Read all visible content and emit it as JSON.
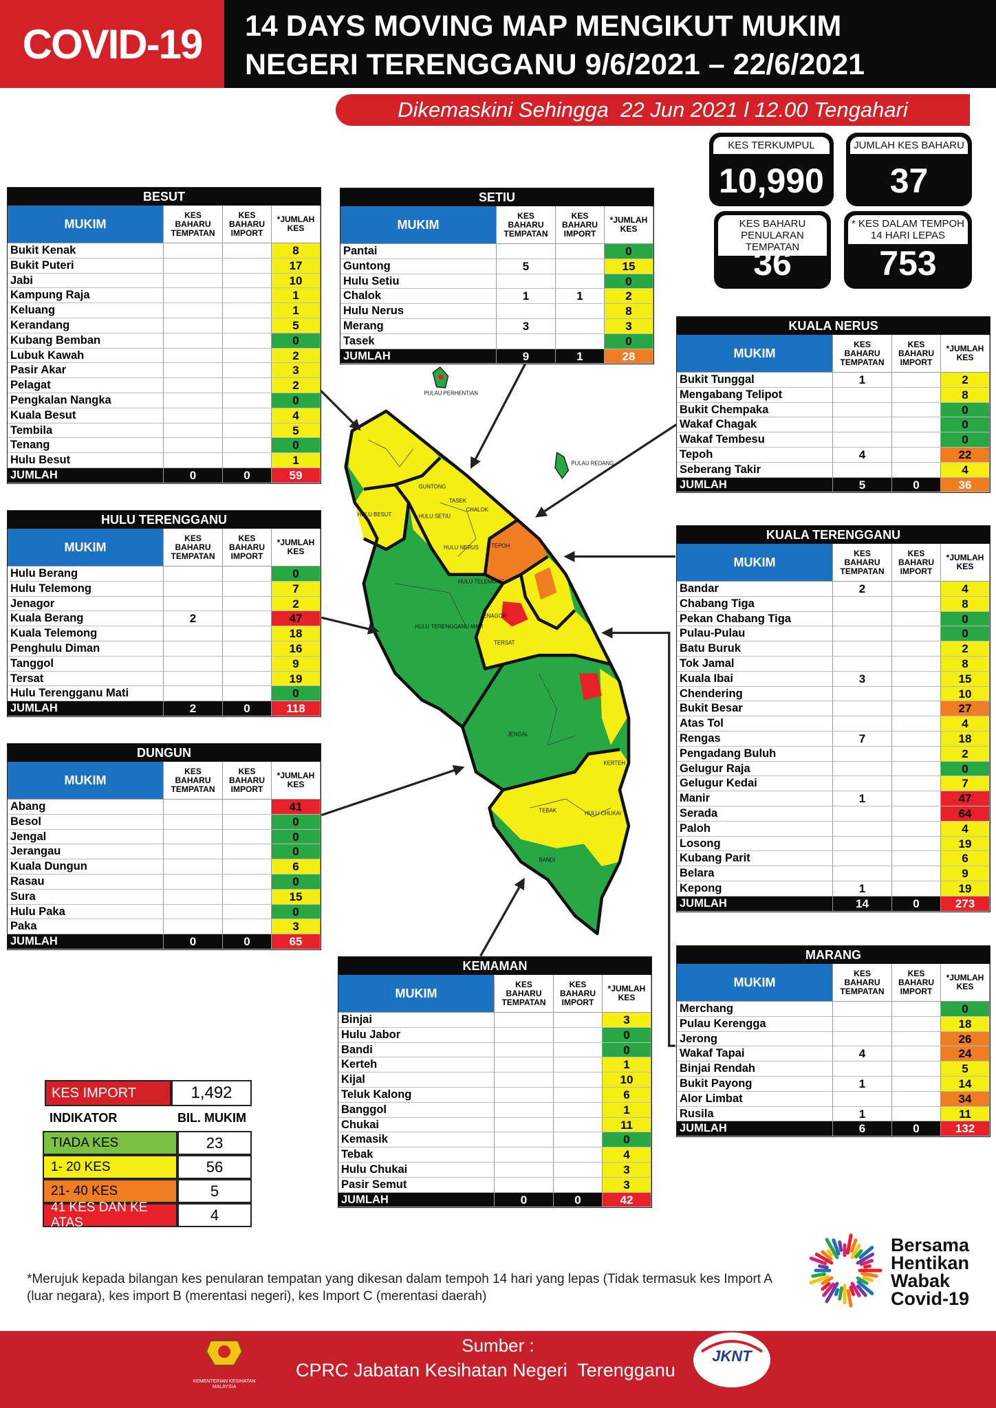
{
  "header": {
    "badge": "COVID-19",
    "title_lines": [
      "14 DAYS MOVING MAP MENGIKUT MUKIM",
      "NEGERI TERENGGANU 9/6/2021 – 22/6/2021"
    ],
    "updated": "Dikemaskini Sehingga  22 Jun 2021 l 12.00 Tengahari"
  },
  "stats": [
    {
      "label": "KES TERKUMPUL",
      "value": "10,990"
    },
    {
      "label": "JUMLAH KES BAHARU",
      "value": 37
    },
    {
      "label": "KES BAHARU PENULARAN TEMPATAN",
      "value": 36
    },
    {
      "label": "* KES DALAM TEMPOH 14 HARI LEPAS",
      "value": 753
    }
  ],
  "columns": [
    "MUKIM",
    "KES BAHARU TEMPATAN",
    "KES BAHARU IMPORT",
    "*JUMLAH KES"
  ],
  "tables": [
    {
      "title": "BESUT",
      "rows": [
        [
          "Bukit Kenak",
          null,
          null,
          8,
          "#f5ee12"
        ],
        [
          "Bukit Puteri",
          null,
          null,
          17,
          "#f5ee12"
        ],
        [
          "Jabi",
          null,
          null,
          10,
          "#f5ee12"
        ],
        [
          "Kampung Raja",
          null,
          null,
          1,
          "#f5ee12"
        ],
        [
          "Keluang",
          null,
          null,
          1,
          "#f5ee12"
        ],
        [
          "Kerandang",
          null,
          null,
          5,
          "#f5ee12"
        ],
        [
          "Kubang Bemban",
          null,
          null,
          0,
          "#27a844"
        ],
        [
          "Lubuk Kawah",
          null,
          null,
          2,
          "#f5ee12"
        ],
        [
          "Pasir Akar",
          null,
          null,
          3,
          "#f5ee12"
        ],
        [
          "Pelagat",
          null,
          null,
          2,
          "#f5ee12"
        ],
        [
          "Pengkalan Nangka",
          null,
          null,
          0,
          "#27a844"
        ],
        [
          "Kuala Besut",
          null,
          null,
          4,
          "#f5ee12"
        ],
        [
          "Tembila",
          null,
          null,
          5,
          "#f5ee12"
        ],
        [
          "Tenang",
          null,
          null,
          0,
          "#27a844"
        ],
        [
          "Hulu Besut",
          null,
          null,
          1,
          "#f5ee12"
        ]
      ],
      "total": [
        "JUMLAH",
        0,
        0,
        59,
        "#e8202a"
      ]
    },
    {
      "title": "SETIU",
      "rows": [
        [
          "Pantai",
          null,
          null,
          0,
          "#27a844"
        ],
        [
          "Guntong",
          5,
          null,
          15,
          "#f5ee12"
        ],
        [
          "Hulu Setiu",
          null,
          null,
          0,
          "#27a844"
        ],
        [
          "Chalok",
          1,
          1,
          2,
          "#f5ee12"
        ],
        [
          "Hulu Nerus",
          null,
          null,
          8,
          "#f5ee12"
        ],
        [
          "Merang",
          3,
          null,
          3,
          "#f5ee12"
        ],
        [
          "Tasek",
          null,
          null,
          0,
          "#27a844"
        ]
      ],
      "total": [
        "JUMLAH",
        9,
        1,
        28,
        "#f07d22"
      ]
    },
    {
      "title": "KUALA NERUS",
      "rows": [
        [
          "Bukit Tunggal",
          1,
          null,
          2,
          "#f5ee12"
        ],
        [
          "Mengabang Telipot",
          null,
          null,
          8,
          "#f5ee12"
        ],
        [
          "Bukit Chempaka",
          null,
          null,
          0,
          "#27a844"
        ],
        [
          "Wakaf Chagak",
          null,
          null,
          0,
          "#27a844"
        ],
        [
          "Wakaf Tembesu",
          null,
          null,
          0,
          "#27a844"
        ],
        [
          "Tepoh",
          4,
          null,
          22,
          "#f07d22"
        ],
        [
          "Seberang Takir",
          null,
          null,
          4,
          "#f5ee12"
        ]
      ],
      "total": [
        "JUMLAH",
        5,
        0,
        36,
        "#f07d22"
      ]
    },
    {
      "title": "HULU TERENGGANU",
      "rows": [
        [
          "Hulu Berang",
          null,
          null,
          0,
          "#27a844"
        ],
        [
          "Hulu Telemong",
          null,
          null,
          7,
          "#f5ee12"
        ],
        [
          "Jenagor",
          null,
          null,
          2,
          "#f5ee12"
        ],
        [
          "Kuala Berang",
          2,
          null,
          47,
          "#e8202a"
        ],
        [
          "Kuala Telemong",
          null,
          null,
          18,
          "#f5ee12"
        ],
        [
          "Penghulu Diman",
          null,
          null,
          16,
          "#f5ee12"
        ],
        [
          "Tanggol",
          null,
          null,
          9,
          "#f5ee12"
        ],
        [
          "Tersat",
          null,
          null,
          19,
          "#f5ee12"
        ],
        [
          "Hulu Terengganu Mati",
          null,
          null,
          0,
          "#27a844"
        ]
      ],
      "total": [
        "JUMLAH",
        2,
        0,
        118,
        "#e8202a"
      ]
    },
    {
      "title": "KUALA TERENGGANU",
      "rows": [
        [
          "Bandar",
          2,
          null,
          4,
          "#f5ee12"
        ],
        [
          "Chabang Tiga",
          null,
          null,
          8,
          "#f5ee12"
        ],
        [
          "Pekan Chabang Tiga",
          null,
          null,
          0,
          "#27a844"
        ],
        [
          "Pulau-Pulau",
          null,
          null,
          0,
          "#27a844"
        ],
        [
          "Batu Buruk",
          null,
          null,
          2,
          "#f5ee12"
        ],
        [
          "Tok Jamal",
          null,
          null,
          8,
          "#f5ee12"
        ],
        [
          "Kuala Ibai",
          3,
          null,
          15,
          "#f5ee12"
        ],
        [
          "Chendering",
          null,
          null,
          10,
          "#f5ee12"
        ],
        [
          "Bukit Besar",
          null,
          null,
          27,
          "#f07d22"
        ],
        [
          "Atas Tol",
          null,
          null,
          4,
          "#f5ee12"
        ],
        [
          "Rengas",
          7,
          null,
          18,
          "#f5ee12"
        ],
        [
          "Pengadang Buluh",
          null,
          null,
          2,
          "#f5ee12"
        ],
        [
          "Gelugur Raja",
          null,
          null,
          0,
          "#27a844"
        ],
        [
          "Gelugur Kedai",
          null,
          null,
          7,
          "#f5ee12"
        ],
        [
          "Manir",
          1,
          null,
          47,
          "#e8202a"
        ],
        [
          "Serada",
          null,
          null,
          64,
          "#e8202a"
        ],
        [
          "Paloh",
          null,
          null,
          4,
          "#f5ee12"
        ],
        [
          "Losong",
          null,
          null,
          19,
          "#f5ee12"
        ],
        [
          "Kubang Parit",
          null,
          null,
          6,
          "#f5ee12"
        ],
        [
          "Belara",
          null,
          null,
          9,
          "#f5ee12"
        ],
        [
          "Kepong",
          1,
          null,
          19,
          "#f5ee12"
        ]
      ],
      "total": [
        "JUMLAH",
        14,
        0,
        273,
        "#e8202a"
      ]
    },
    {
      "title": "DUNGUN",
      "rows": [
        [
          "Abang",
          null,
          null,
          41,
          "#e8202a"
        ],
        [
          "Besol",
          null,
          null,
          0,
          "#27a844"
        ],
        [
          "Jengal",
          null,
          null,
          0,
          "#27a844"
        ],
        [
          "Jerangau",
          null,
          null,
          0,
          "#27a844"
        ],
        [
          "Kuala Dungun",
          null,
          null,
          6,
          "#f5ee12"
        ],
        [
          "Rasau",
          null,
          null,
          0,
          "#27a844"
        ],
        [
          "Sura",
          null,
          null,
          15,
          "#f5ee12"
        ],
        [
          "Hulu Paka",
          null,
          null,
          0,
          "#27a844"
        ],
        [
          "Paka",
          null,
          null,
          3,
          "#f5ee12"
        ]
      ],
      "total": [
        "JUMLAH",
        0,
        0,
        65,
        "#e8202a"
      ]
    },
    {
      "title": "MARANG",
      "rows": [
        [
          "Merchang",
          null,
          null,
          0,
          "#27a844"
        ],
        [
          "Pulau Kerengga",
          null,
          null,
          18,
          "#f5ee12"
        ],
        [
          "Jerong",
          null,
          null,
          26,
          "#f07d22"
        ],
        [
          "Wakaf Tapai",
          4,
          null,
          24,
          "#f07d22"
        ],
        [
          "Binjai Rendah",
          null,
          null,
          5,
          "#f5ee12"
        ],
        [
          "Bukit Payong",
          1,
          null,
          14,
          "#f5ee12"
        ],
        [
          "Alor Limbat",
          null,
          null,
          34,
          "#f07d22"
        ],
        [
          "Rusila",
          1,
          null,
          11,
          "#f5ee12"
        ]
      ],
      "total": [
        "JUMLAH",
        6,
        0,
        132,
        "#e8202a"
      ]
    },
    {
      "title": "KEMAMAN",
      "rows": [
        [
          "Binjai",
          null,
          null,
          3,
          "#f5ee12"
        ],
        [
          "Hulu Jabor",
          null,
          null,
          0,
          "#27a844"
        ],
        [
          "Bandi",
          null,
          null,
          0,
          "#27a844"
        ],
        [
          "Kerteh",
          null,
          null,
          1,
          "#f5ee12"
        ],
        [
          "Kijal",
          null,
          null,
          10,
          "#f5ee12"
        ],
        [
          "Teluk Kalong",
          null,
          null,
          6,
          "#f5ee12"
        ],
        [
          "Banggol",
          null,
          null,
          1,
          "#f5ee12"
        ],
        [
          "Chukai",
          null,
          null,
          11,
          "#f5ee12"
        ],
        [
          "Kemasik",
          null,
          null,
          0,
          "#27a844"
        ],
        [
          "Tebak",
          null,
          null,
          4,
          "#f5ee12"
        ],
        [
          "Hulu Chukai",
          null,
          null,
          3,
          "#f5ee12"
        ],
        [
          "Pasir Semut",
          null,
          null,
          3,
          "#f5ee12"
        ]
      ],
      "total": [
        "JUMLAH",
        0,
        0,
        42,
        "#e8202a"
      ]
    }
  ],
  "legend": {
    "import_label": "KES IMPORT",
    "import_value": "1,492",
    "headers": [
      "INDIKATOR",
      "BIL. MUKIM"
    ],
    "rows": [
      {
        "label": "TIADA KES",
        "count": 23,
        "color": "#7cc242"
      },
      {
        "label": "1- 20 KES",
        "count": 56,
        "color": "#f5ee12"
      },
      {
        "label": "21- 40 KES",
        "count": 5,
        "color": "#f07d22"
      },
      {
        "label": "41 KES DAN KE ATAS",
        "count": 4,
        "color": "#e8202a"
      }
    ]
  },
  "map_labels": [
    "PULAU PERHENTIAN",
    "PULAU REDANG",
    "HULU BESUT",
    "GUNTONG",
    "TASEK",
    "CHALOK",
    "HULU SETIU",
    "HULU NERUS",
    "TEPOH",
    "HULU TELEMONG",
    "JENAGOR",
    "TERSAT",
    "HULU TERENGGANU MATI",
    "JENGAL",
    "TEBAK",
    "HULU CHUKAI",
    "BANDI",
    "KERTEH"
  ],
  "footnote": "*Merujuk kepada bilangan kes penularan tempatan yang dikesan dalam tempoh 14 hari yang lepas (Tidak termasuk kes Import A (luar negara), kes import B (merentasi negeri), kes Import C (merentasi daerah)",
  "campaign": [
    "Bersama",
    "Hentikan",
    "Wabak",
    "Covid-19"
  ],
  "footer": {
    "source_label": "Sumber :",
    "source": "CPRC Jabatan Kesihatan Negeri  Terengganu",
    "ministry": "KEMENTERIAN KESIHATAN MALAYSIA",
    "logo": "JKNT"
  }
}
